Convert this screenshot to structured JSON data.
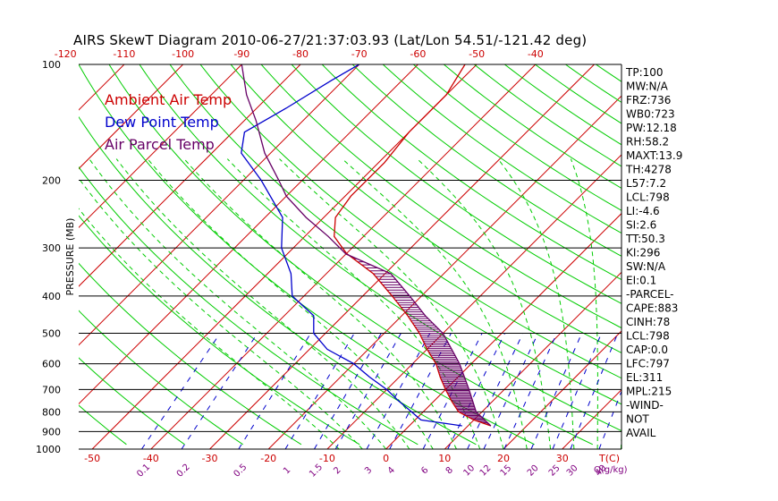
{
  "title": "AIRS SkewT Diagram 2010-06-27/21:37:03.93 (Lat/Lon 54.51/-121.42 deg)",
  "colors": {
    "isotherm": "#cc0000",
    "dry_adiabat": "#00cc00",
    "moist_adiabat": "#00cc00",
    "mixing_ratio": "#0000cc",
    "isobar": "#000000",
    "ambient": "#cc0000",
    "dewpoint": "#0000cc",
    "parcel": "#660066",
    "cape_hatch": "#660066"
  },
  "legend": [
    {
      "label": "Ambient Air Temp",
      "color": "#cc0000"
    },
    {
      "label": "Dew Point Temp",
      "color": "#0000cc"
    },
    {
      "label": "Air Parcel Temp",
      "color": "#660066"
    }
  ],
  "stats": [
    "TP:100",
    "MW:N/A",
    "FRZ:736",
    "WB0:723",
    "PW:12.18",
    "RH:58.2",
    "MAXT:13.9",
    "TH:4278",
    "L57:7.2",
    "LCL:798",
    "LI:-4.6",
    "SI:2.6",
    "TT:50.3",
    "KI:296",
    "SW:N/A",
    "EI:0.1",
    "-PARCEL-",
    "CAPE:883",
    "CINH:78",
    "LCL:798",
    "CAP:0.0",
    "LFC:797",
    "EL:311",
    "MPL:215",
    "-WIND-",
    "NOT",
    "AVAIL"
  ],
  "chart_data": {
    "type": "skew-t",
    "ylabel": "PRESSURE (MB)",
    "y_scale": "log",
    "pressure_ticks": [
      100,
      200,
      300,
      400,
      500,
      600,
      700,
      800,
      900,
      1000
    ],
    "top_temp_ticks": [
      -120,
      -110,
      -100,
      -90,
      -80,
      -70,
      -60,
      -50,
      -40
    ],
    "bottom_temp_ticks": [
      -50,
      -40,
      -30,
      -20,
      -10,
      0,
      10,
      20,
      30
    ],
    "bottom_temp_unit": "T(C)",
    "mixing_ratio_labels": [
      "0.1",
      "0.2",
      "0.5",
      "1",
      "1.5",
      "2",
      "3",
      "4",
      "6",
      "8",
      "10",
      "12",
      "15",
      "20",
      "25",
      "30",
      "40"
    ],
    "mixing_ratio_unit": "Q(g/kg)",
    "series": [
      {
        "name": "Ambient Air Temp",
        "points": [
          [
            870,
            13.9
          ],
          [
            840,
            10
          ],
          [
            800,
            6
          ],
          [
            750,
            3
          ],
          [
            700,
            0
          ],
          [
            650,
            -3
          ],
          [
            600,
            -6
          ],
          [
            550,
            -10
          ],
          [
            500,
            -14
          ],
          [
            450,
            -19
          ],
          [
            400,
            -25
          ],
          [
            350,
            -32
          ],
          [
            310,
            -40
          ],
          [
            280,
            -45
          ],
          [
            250,
            -48
          ],
          [
            220,
            -49
          ],
          [
            200,
            -49
          ],
          [
            180,
            -49
          ],
          [
            150,
            -50
          ],
          [
            120,
            -50
          ],
          [
            100,
            -52
          ]
        ]
      },
      {
        "name": "Dew Point Temp",
        "points": [
          [
            870,
            9
          ],
          [
            840,
            1
          ],
          [
            800,
            -2
          ],
          [
            750,
            -6
          ],
          [
            700,
            -10
          ],
          [
            650,
            -15
          ],
          [
            600,
            -20
          ],
          [
            550,
            -27
          ],
          [
            500,
            -32
          ],
          [
            450,
            -35
          ],
          [
            400,
            -42
          ],
          [
            350,
            -46
          ],
          [
            300,
            -52
          ],
          [
            250,
            -57
          ],
          [
            200,
            -67
          ],
          [
            170,
            -75
          ],
          [
            150,
            -78
          ],
          [
            130,
            -75
          ],
          [
            110,
            -72
          ],
          [
            100,
            -70
          ]
        ]
      },
      {
        "name": "Air Parcel Temp",
        "points": [
          [
            870,
            13.9
          ],
          [
            800,
            9
          ],
          [
            700,
            4
          ],
          [
            600,
            -2
          ],
          [
            500,
            -10
          ],
          [
            450,
            -16
          ],
          [
            400,
            -22
          ],
          [
            350,
            -29
          ],
          [
            311,
            -40
          ],
          [
            280,
            -46
          ],
          [
            250,
            -53
          ],
          [
            220,
            -60
          ],
          [
            200,
            -64
          ],
          [
            170,
            -71
          ],
          [
            140,
            -78
          ],
          [
            120,
            -84
          ],
          [
            100,
            -90
          ]
        ]
      }
    ]
  }
}
